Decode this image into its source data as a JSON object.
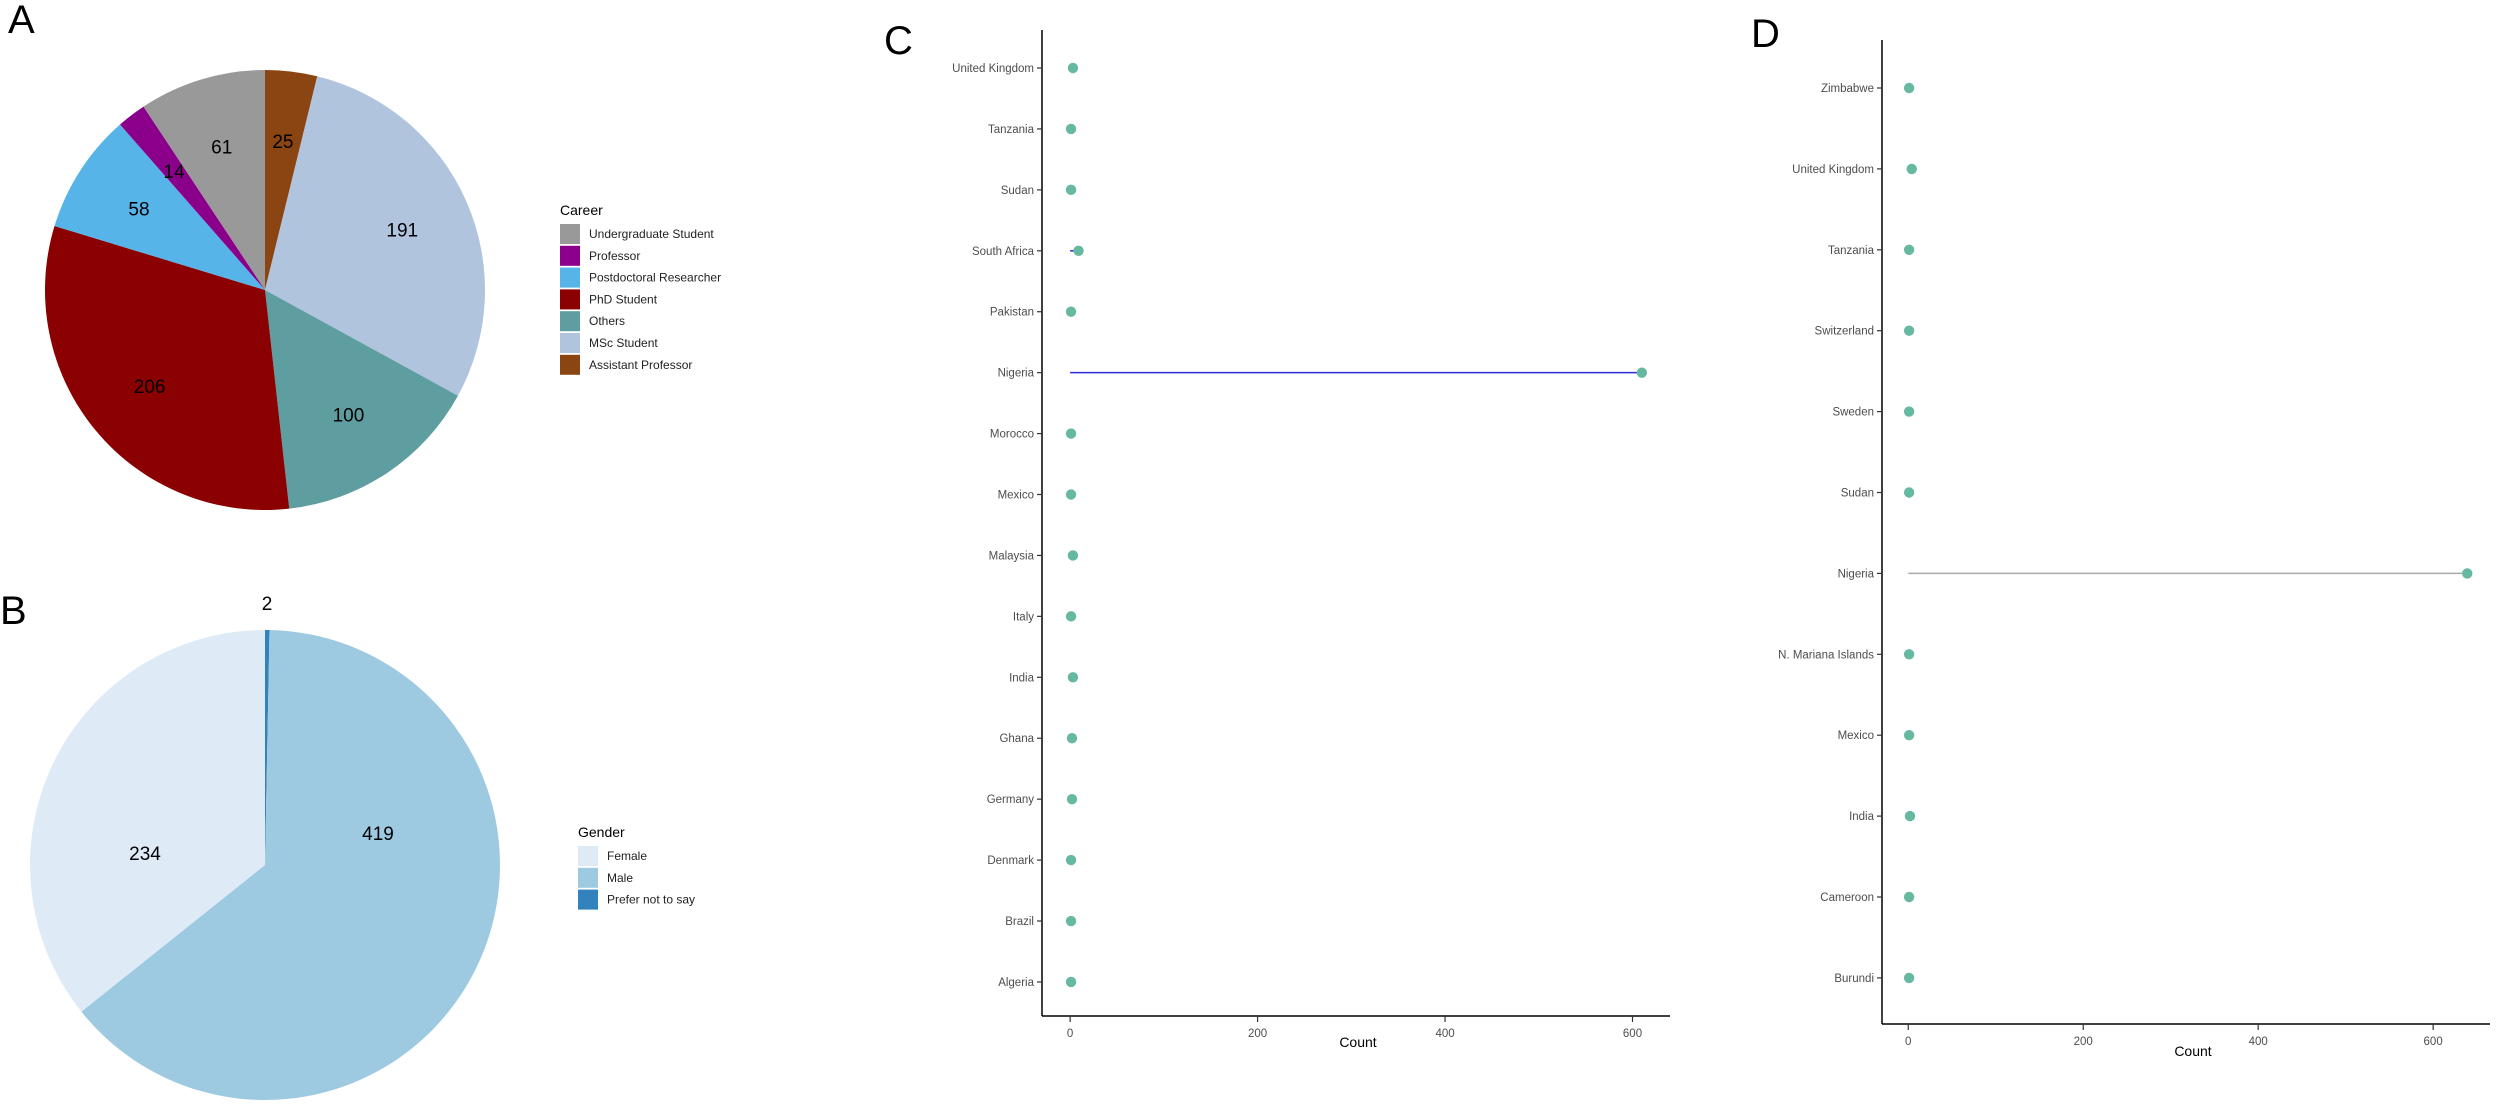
{
  "panels": {
    "a": {
      "letter": "A",
      "legend_title": "Career",
      "chart_data": {
        "type": "pie",
        "title": "",
        "legend_title": "Career",
        "slices": [
          {
            "label": "Assistant Professor",
            "value": 25,
            "color": "#8B4513"
          },
          {
            "label": "MSc Student",
            "value": 191,
            "color": "#B0C4DE"
          },
          {
            "label": "Others",
            "value": 100,
            "color": "#5F9EA0"
          },
          {
            "label": "PhD Student",
            "value": 206,
            "color": "#8B0000"
          },
          {
            "label": "Postdoctoral Researcher",
            "value": 58,
            "color": "#56B4E9"
          },
          {
            "label": "Professor",
            "value": 14,
            "color": "#8B008B"
          },
          {
            "label": "Undergraduate Student",
            "value": 61,
            "color": "#999999"
          }
        ],
        "legend_order": [
          "Undergraduate Student",
          "Professor",
          "Postdoctoral Researcher",
          "PhD Student",
          "Others",
          "MSc Student",
          "Assistant Professor"
        ]
      }
    },
    "b": {
      "letter": "B",
      "legend_title": "Gender",
      "chart_data": {
        "type": "pie",
        "title": "",
        "legend_title": "Gender",
        "slices": [
          {
            "label": "Prefer not to say",
            "value": 2,
            "color": "#3182BD"
          },
          {
            "label": "Male",
            "value": 419,
            "color": "#9ECAE1"
          },
          {
            "label": "Female",
            "value": 234,
            "color": "#DEEBF7"
          }
        ],
        "legend_order": [
          "Female",
          "Male",
          "Prefer not to say"
        ]
      }
    },
    "c": {
      "letter": "C",
      "xlabel": "Count",
      "chart_data": {
        "type": "scatter",
        "subtype": "lollipop",
        "xlabel": "Count",
        "ylabel": "",
        "xlim": [
          -30,
          640
        ],
        "xticks": [
          0,
          200,
          400,
          600
        ],
        "categories": [
          "United Kingdom",
          "Tanzania",
          "Sudan",
          "South Africa",
          "Pakistan",
          "Nigeria",
          "Morocco",
          "Mexico",
          "Malaysia",
          "Italy",
          "India",
          "Ghana",
          "Germany",
          "Denmark",
          "Brazil",
          "Algeria"
        ],
        "values": [
          3,
          1,
          1,
          9,
          1,
          610,
          1,
          1,
          3,
          1,
          3,
          2,
          2,
          1,
          1,
          1
        ],
        "point_color": "#66B9A0",
        "segment_color": "#2B2BD9",
        "grid": false
      }
    },
    "d": {
      "letter": "D",
      "xlabel": "Count",
      "chart_data": {
        "type": "scatter",
        "subtype": "lollipop",
        "xlabel": "Count",
        "ylabel": "",
        "xlim": [
          -30,
          665
        ],
        "xticks": [
          0,
          200,
          400,
          600
        ],
        "categories": [
          "Zimbabwe",
          "United Kingdom",
          "Tanzania",
          "Switzerland",
          "Sweden",
          "Sudan",
          "Nigeria",
          "N. Mariana Islands",
          "Mexico",
          "India",
          "Cameroon",
          "Burundi"
        ],
        "values": [
          1,
          4,
          1,
          1,
          1,
          1,
          639,
          1,
          1,
          2,
          1,
          1
        ],
        "point_color": "#66B9A0",
        "segment_color": "#A9A9A9",
        "grid": false
      }
    }
  }
}
